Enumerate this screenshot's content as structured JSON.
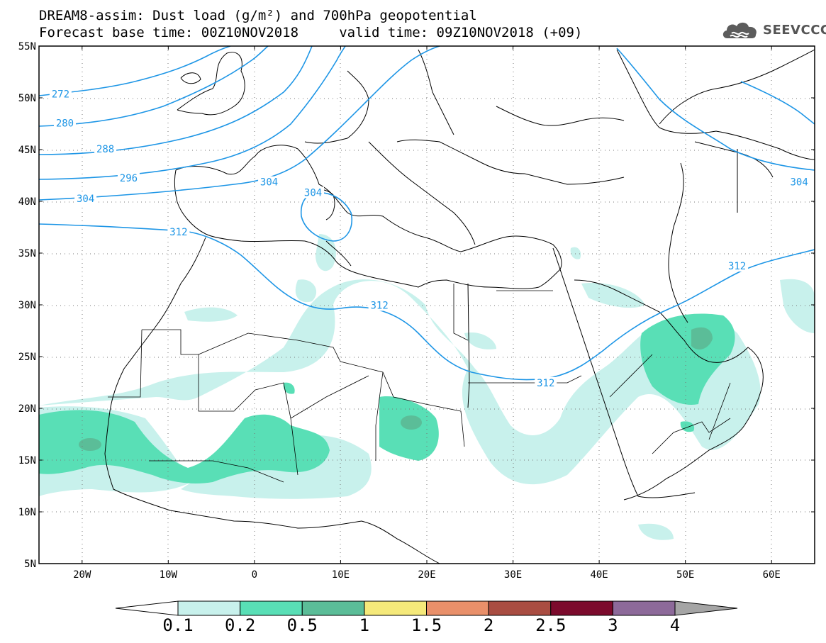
{
  "title_line1": "DREAM8-assim: Dust load (g/m²) and 700hPa geopotential",
  "title_line2": "Forecast base time: 00Z10NOV2018     valid time: 09Z10NOV2018 (+09)",
  "logo_text": "SEEVCCC",
  "lat_labels": [
    {
      "lat": 55,
      "text": "55N"
    },
    {
      "lat": 50,
      "text": "50N"
    },
    {
      "lat": 45,
      "text": "45N"
    },
    {
      "lat": 40,
      "text": "40N"
    },
    {
      "lat": 35,
      "text": "35N"
    },
    {
      "lat": 30,
      "text": "30N"
    },
    {
      "lat": 25,
      "text": "25N"
    },
    {
      "lat": 20,
      "text": "20N"
    },
    {
      "lat": 15,
      "text": "15N"
    },
    {
      "lat": 10,
      "text": "10N"
    },
    {
      "lat": 5,
      "text": "5N"
    }
  ],
  "lon_labels": [
    {
      "lon": -20,
      "text": "20W"
    },
    {
      "lon": -10,
      "text": "10W"
    },
    {
      "lon": 0,
      "text": "0"
    },
    {
      "lon": 10,
      "text": "10E"
    },
    {
      "lon": 20,
      "text": "20E"
    },
    {
      "lon": 30,
      "text": "30E"
    },
    {
      "lon": 40,
      "text": "40E"
    },
    {
      "lon": 50,
      "text": "50E"
    },
    {
      "lon": 60,
      "text": "60E"
    }
  ],
  "map_extent": {
    "lon_min": -25,
    "lon_max": 65,
    "lat_min": 5,
    "lat_max": 55
  },
  "geopotential_contours": [
    {
      "label": "272",
      "lon": -22.5,
      "lat": 50.3
    },
    {
      "label": "280",
      "lon": -22.0,
      "lat": 47.5
    },
    {
      "label": "288",
      "lon": -17.3,
      "lat": 45.0
    },
    {
      "label": "296",
      "lon": -14.6,
      "lat": 42.2
    },
    {
      "label": "304",
      "lon": -19.6,
      "lat": 40.2
    },
    {
      "label": "304",
      "lon": 1.7,
      "lat": 41.8
    },
    {
      "label": "304",
      "lon": 6.8,
      "lat": 40.8
    },
    {
      "label": "312",
      "lon": -8.8,
      "lat": 37.0
    },
    {
      "label": "312",
      "lon": 14.5,
      "lat": 29.9
    },
    {
      "label": "312",
      "lon": 33.8,
      "lat": 22.4
    },
    {
      "label": "312",
      "lon": 56.0,
      "lat": 33.7
    },
    {
      "label": "304",
      "lon": 63.2,
      "lat": 41.8
    }
  ],
  "colorbar": {
    "levels": [
      "0.1",
      "0.2",
      "0.5",
      "1",
      "1.5",
      "2",
      "2.5",
      "3",
      "4"
    ],
    "colors": [
      "#ffffff",
      "#c8f1ec",
      "#59dfb6",
      "#5bbd98",
      "#f5e97a",
      "#e9906a",
      "#a94d42",
      "#7c0b2d",
      "#8d6a9a",
      "#a5a5a5"
    ]
  },
  "colors": {
    "geopotential": "#1e96e6",
    "frame": "#000000"
  }
}
